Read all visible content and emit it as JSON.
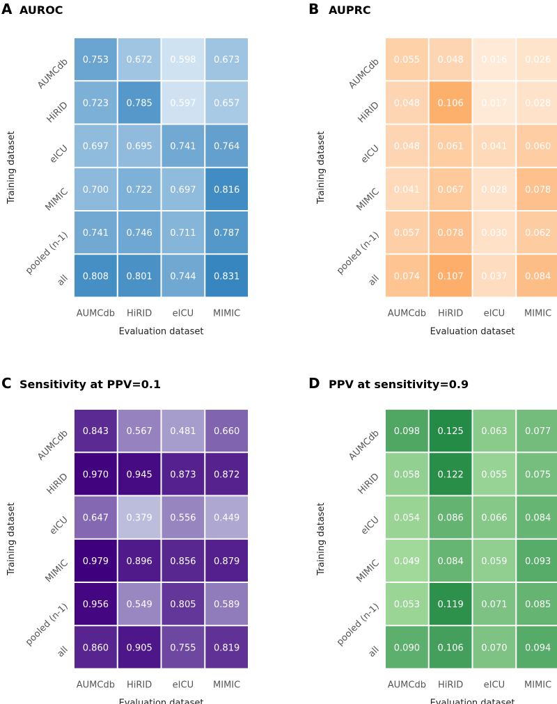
{
  "chart_data": [
    {
      "type": "heatmap",
      "panel": "A",
      "title": "AUROC",
      "xlabel": "Evaluation dataset",
      "ylabel": "Training dataset",
      "x_categories": [
        "AUMCdb",
        "HiRID",
        "eICU",
        "MIMIC"
      ],
      "y_categories": [
        "AUMCdb",
        "HiRID",
        "eICU",
        "MIMIC",
        "pooled (n-1)",
        "all"
      ],
      "values": [
        [
          0.753,
          0.672,
          0.598,
          0.673
        ],
        [
          0.723,
          0.785,
          0.597,
          0.657
        ],
        [
          0.697,
          0.695,
          0.741,
          0.764
        ],
        [
          0.7,
          0.722,
          0.697,
          0.816
        ],
        [
          0.741,
          0.746,
          0.711,
          0.787
        ],
        [
          0.808,
          0.801,
          0.744,
          0.831
        ]
      ],
      "labels": [
        [
          "0.753",
          "0.672",
          "0.598",
          "0.673"
        ],
        [
          "0.723",
          "0.785",
          "0.597",
          "0.657"
        ],
        [
          "0.697",
          "0.695",
          "0.741",
          "0.764"
        ],
        [
          "0.700",
          "0.722",
          "0.697",
          "0.816"
        ],
        [
          "0.741",
          "0.746",
          "0.711",
          "0.787"
        ],
        [
          "0.808",
          "0.801",
          "0.744",
          "0.831"
        ]
      ],
      "color_range": [
        0.58,
        0.84
      ],
      "colors": [
        "#dbe9f6",
        "#3182bd"
      ]
    },
    {
      "type": "heatmap",
      "panel": "B",
      "title": "AUPRC",
      "xlabel": "Evaluation dataset",
      "ylabel": "Training dataset",
      "x_categories": [
        "AUMCdb",
        "HiRID",
        "eICU",
        "MIMIC"
      ],
      "y_categories": [
        "AUMCdb",
        "HiRID",
        "eICU",
        "MIMIC",
        "pooled (n-1)",
        "all"
      ],
      "values": [
        [
          0.055,
          0.048,
          0.016,
          0.026
        ],
        [
          0.048,
          0.106,
          0.017,
          0.028
        ],
        [
          0.048,
          0.061,
          0.041,
          0.06
        ],
        [
          0.041,
          0.067,
          0.028,
          0.078
        ],
        [
          0.057,
          0.078,
          0.03,
          0.062
        ],
        [
          0.074,
          0.107,
          0.037,
          0.084
        ]
      ],
      "labels": [
        [
          "0.055",
          "0.048",
          "0.016",
          "0.026"
        ],
        [
          "0.048",
          "0.106",
          "0.017",
          "0.028"
        ],
        [
          "0.048",
          "0.061",
          "0.041",
          "0.060"
        ],
        [
          "0.041",
          "0.067",
          "0.028",
          "0.078"
        ],
        [
          "0.057",
          "0.078",
          "0.030",
          "0.062"
        ],
        [
          "0.074",
          "0.107",
          "0.037",
          "0.084"
        ]
      ],
      "color_range": [
        0.0,
        0.107
      ],
      "colors": [
        "#fff5eb",
        "#fdae6b"
      ]
    },
    {
      "type": "heatmap",
      "panel": "C",
      "title": "Sensitivity at PPV=0.1",
      "xlabel": "Evaluation dataset",
      "ylabel": "Training dataset",
      "x_categories": [
        "AUMCdb",
        "HiRID",
        "eICU",
        "MIMIC"
      ],
      "y_categories": [
        "AUMCdb",
        "HiRID",
        "eICU",
        "MIMIC",
        "pooled (n-1)",
        "all"
      ],
      "values": [
        [
          0.843,
          0.567,
          0.481,
          0.66
        ],
        [
          0.97,
          0.945,
          0.873,
          0.872
        ],
        [
          0.647,
          0.379,
          0.556,
          0.449
        ],
        [
          0.979,
          0.896,
          0.856,
          0.879
        ],
        [
          0.956,
          0.549,
          0.805,
          0.589
        ],
        [
          0.86,
          0.905,
          0.755,
          0.819
        ]
      ],
      "labels": [
        [
          "0.843",
          "0.567",
          "0.481",
          "0.660"
        ],
        [
          "0.970",
          "0.945",
          "0.873",
          "0.872"
        ],
        [
          "0.647",
          "0.379",
          "0.556",
          "0.449"
        ],
        [
          "0.979",
          "0.896",
          "0.856",
          "0.879"
        ],
        [
          "0.956",
          "0.549",
          "0.805",
          "0.589"
        ],
        [
          "0.860",
          "0.905",
          "0.755",
          "0.819"
        ]
      ],
      "color_range": [
        0.379,
        0.979
      ],
      "colors": [
        "#bcbddc",
        "#3f007d"
      ]
    },
    {
      "type": "heatmap",
      "panel": "D",
      "title": "PPV at sensitivity=0.9",
      "xlabel": "Evaluation dataset",
      "ylabel": "Training dataset",
      "x_categories": [
        "AUMCdb",
        "HiRID",
        "eICU",
        "MIMIC"
      ],
      "y_categories": [
        "AUMCdb",
        "HiRID",
        "eICU",
        "MIMIC",
        "pooled (n-1)",
        "all"
      ],
      "values": [
        [
          0.098,
          0.125,
          0.063,
          0.077
        ],
        [
          0.058,
          0.122,
          0.055,
          0.075
        ],
        [
          0.054,
          0.086,
          0.066,
          0.084
        ],
        [
          0.049,
          0.084,
          0.059,
          0.093
        ],
        [
          0.053,
          0.119,
          0.071,
          0.085
        ],
        [
          0.09,
          0.106,
          0.07,
          0.094
        ]
      ],
      "labels": [
        [
          "0.098",
          "0.125",
          "0.063",
          "0.077"
        ],
        [
          "0.058",
          "0.122",
          "0.055",
          "0.075"
        ],
        [
          "0.054",
          "0.086",
          "0.066",
          "0.084"
        ],
        [
          "0.049",
          "0.084",
          "0.059",
          "0.093"
        ],
        [
          "0.053",
          "0.119",
          "0.071",
          "0.085"
        ],
        [
          "0.090",
          "0.106",
          "0.070",
          "0.094"
        ]
      ],
      "color_range": [
        0.049,
        0.125
      ],
      "colors": [
        "#a1d99b",
        "#238b45"
      ]
    }
  ]
}
